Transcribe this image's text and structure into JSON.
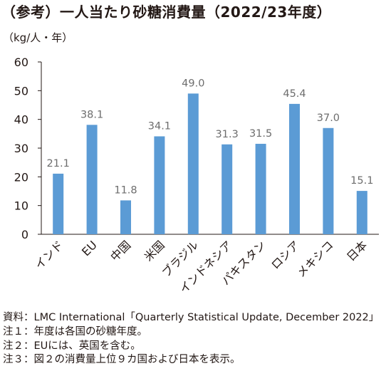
{
  "chart_data": {
    "type": "bar",
    "title": "（参考）一人当たり砂糖消費量（2022/23年度）",
    "ylabel": "（kg/人・年）",
    "xlabel": "",
    "categories": [
      "インド",
      "EU",
      "中国",
      "米国",
      "ブラジル",
      "インドネシア",
      "パキスタン",
      "ロシア",
      "メキシコ",
      "日本"
    ],
    "values": [
      21.1,
      38.1,
      11.8,
      34.1,
      49.0,
      31.3,
      31.5,
      45.4,
      37.0,
      15.1
    ],
    "value_labels": [
      "21.1",
      "38.1",
      "11.8",
      "34.1",
      "49.0",
      "31.3",
      "31.5",
      "45.4",
      "37.0",
      "15.1"
    ],
    "ylim": [
      0,
      60
    ],
    "yticks": [
      0,
      10,
      20,
      30,
      40,
      50,
      60
    ],
    "grid": false,
    "bar_color": "#5b9bd5",
    "data_label_color": "#6d6d6d"
  },
  "notes": [
    "資料：LMC International「Quarterly Statistical Update, December 2022」",
    "注１：年度は各国の砂糖年度。",
    "注２：EUには、英国を含む。",
    "注３：図２の消費量上位９カ国および日本を表示。"
  ]
}
